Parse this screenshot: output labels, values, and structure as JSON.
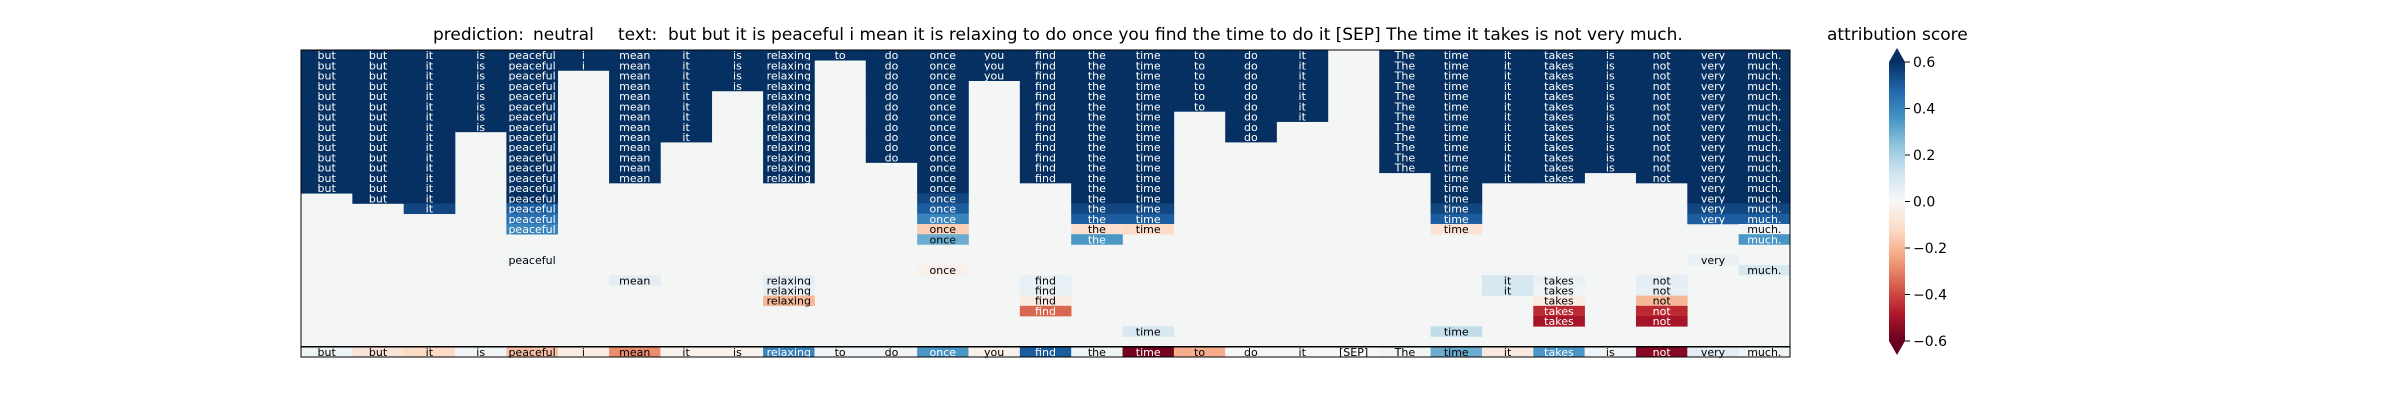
{
  "title": {
    "prediction_prefix": "prediction:",
    "prediction": "neutral",
    "text_prefix": "text:",
    "text": "but but it is peaceful i mean it is relaxing to do once you find the time to do it [SEP] The time it takes is not very much."
  },
  "colorbar": {
    "title": "attribution score",
    "ticks": [
      "0.6",
      "0.4",
      "0.2",
      "0.0",
      "−0.2",
      "−0.4",
      "−0.6"
    ],
    "low_color": "#67001f",
    "mid_color": "#f7f7f7",
    "high_color": "#053061"
  },
  "chart_data": {
    "type": "heatmap",
    "cmap": "RdBu",
    "vmin": -0.6,
    "vmax": 0.6,
    "background": "#f4f6f6",
    "tokens": [
      "but",
      "but",
      "it",
      "is",
      "peaceful",
      "i",
      "mean",
      "it",
      "is",
      "relaxing",
      "to",
      "do",
      "once",
      "you",
      "find",
      "the",
      "time",
      "to",
      "do",
      "it",
      "[SEP]",
      "The",
      "time",
      "it",
      "takes",
      "is",
      "not",
      "very",
      "much."
    ],
    "bottom_row_values": [
      0.03,
      -0.08,
      -0.12,
      0.02,
      -0.18,
      -0.05,
      -0.28,
      -0.02,
      -0.02,
      0.4,
      0.02,
      0.02,
      0.35,
      -0.03,
      0.5,
      0.03,
      -0.58,
      -0.22,
      0.0,
      0.0,
      0.0,
      0.02,
      0.3,
      -0.06,
      0.35,
      0.02,
      -0.55,
      0.06,
      0.02
    ],
    "columns": [
      [
        [
          0,
          0.6
        ],
        [
          1,
          0.6
        ],
        [
          2,
          0.6
        ],
        [
          3,
          0.6
        ],
        [
          4,
          0.6
        ],
        [
          5,
          0.6
        ],
        [
          6,
          0.6
        ],
        [
          7,
          0.6
        ],
        [
          8,
          0.6
        ],
        [
          9,
          0.6
        ],
        [
          10,
          0.6
        ],
        [
          11,
          0.6
        ],
        [
          12,
          0.6
        ],
        [
          13,
          0.6
        ]
      ],
      [
        [
          0,
          0.6
        ],
        [
          1,
          0.6
        ],
        [
          2,
          0.6
        ],
        [
          3,
          0.6
        ],
        [
          4,
          0.6
        ],
        [
          5,
          0.6
        ],
        [
          6,
          0.6
        ],
        [
          7,
          0.6
        ],
        [
          8,
          0.6
        ],
        [
          9,
          0.6
        ],
        [
          10,
          0.6
        ],
        [
          11,
          0.6
        ],
        [
          12,
          0.6
        ],
        [
          13,
          0.6
        ],
        [
          14,
          0.6
        ]
      ],
      [
        [
          0,
          0.6
        ],
        [
          1,
          0.6
        ],
        [
          2,
          0.6
        ],
        [
          3,
          0.6
        ],
        [
          4,
          0.6
        ],
        [
          5,
          0.6
        ],
        [
          6,
          0.6
        ],
        [
          7,
          0.6
        ],
        [
          8,
          0.6
        ],
        [
          9,
          0.6
        ],
        [
          10,
          0.6
        ],
        [
          11,
          0.6
        ],
        [
          12,
          0.6
        ],
        [
          13,
          0.6
        ],
        [
          14,
          0.6
        ],
        [
          15,
          0.55
        ]
      ],
      [
        [
          0,
          0.6
        ],
        [
          1,
          0.6
        ],
        [
          2,
          0.6
        ],
        [
          3,
          0.6
        ],
        [
          4,
          0.6
        ],
        [
          5,
          0.6
        ],
        [
          6,
          0.6
        ],
        [
          7,
          0.6
        ]
      ],
      [
        [
          0,
          0.6
        ],
        [
          1,
          0.6
        ],
        [
          2,
          0.6
        ],
        [
          3,
          0.6
        ],
        [
          4,
          0.6
        ],
        [
          5,
          0.6
        ],
        [
          6,
          0.6
        ],
        [
          7,
          0.6
        ],
        [
          8,
          0.6
        ],
        [
          9,
          0.6
        ],
        [
          10,
          0.6
        ],
        [
          11,
          0.6
        ],
        [
          12,
          0.6
        ],
        [
          13,
          0.6
        ],
        [
          14,
          0.6
        ],
        [
          15,
          0.5
        ],
        [
          16,
          0.45
        ],
        [
          17,
          0.4
        ],
        [
          20,
          0.02
        ]
      ],
      [
        [
          0,
          0.6
        ],
        [
          1,
          0.6
        ]
      ],
      [
        [
          0,
          0.6
        ],
        [
          1,
          0.6
        ],
        [
          2,
          0.6
        ],
        [
          3,
          0.6
        ],
        [
          4,
          0.6
        ],
        [
          5,
          0.6
        ],
        [
          6,
          0.6
        ],
        [
          7,
          0.6
        ],
        [
          8,
          0.6
        ],
        [
          9,
          0.6
        ],
        [
          10,
          0.6
        ],
        [
          11,
          0.6
        ],
        [
          12,
          0.6
        ],
        [
          22,
          0.06
        ]
      ],
      [
        [
          0,
          0.6
        ],
        [
          1,
          0.6
        ],
        [
          2,
          0.6
        ],
        [
          3,
          0.6
        ],
        [
          4,
          0.6
        ],
        [
          5,
          0.6
        ],
        [
          6,
          0.6
        ],
        [
          7,
          0.6
        ],
        [
          8,
          0.6
        ]
      ],
      [
        [
          0,
          0.6
        ],
        [
          1,
          0.6
        ],
        [
          2,
          0.6
        ],
        [
          3,
          0.6
        ]
      ],
      [
        [
          0,
          0.6
        ],
        [
          1,
          0.6
        ],
        [
          2,
          0.6
        ],
        [
          3,
          0.6
        ],
        [
          4,
          0.6
        ],
        [
          5,
          0.6
        ],
        [
          6,
          0.6
        ],
        [
          7,
          0.6
        ],
        [
          8,
          0.6
        ],
        [
          9,
          0.6
        ],
        [
          10,
          0.6
        ],
        [
          11,
          0.6
        ],
        [
          12,
          0.6
        ],
        [
          22,
          0.06
        ],
        [
          23,
          0.05
        ],
        [
          24,
          -0.2
        ]
      ],
      [
        [
          0,
          0.6
        ]
      ],
      [
        [
          0,
          0.6
        ],
        [
          1,
          0.6
        ],
        [
          2,
          0.6
        ],
        [
          3,
          0.6
        ],
        [
          4,
          0.6
        ],
        [
          5,
          0.6
        ],
        [
          6,
          0.6
        ],
        [
          7,
          0.6
        ],
        [
          8,
          0.6
        ],
        [
          9,
          0.6
        ],
        [
          10,
          0.6
        ]
      ],
      [
        [
          0,
          0.6
        ],
        [
          1,
          0.6
        ],
        [
          2,
          0.6
        ],
        [
          3,
          0.6
        ],
        [
          4,
          0.6
        ],
        [
          5,
          0.6
        ],
        [
          6,
          0.6
        ],
        [
          7,
          0.6
        ],
        [
          8,
          0.6
        ],
        [
          9,
          0.6
        ],
        [
          10,
          0.6
        ],
        [
          11,
          0.6
        ],
        [
          12,
          0.6
        ],
        [
          13,
          0.6
        ],
        [
          14,
          0.55
        ],
        [
          15,
          0.5
        ],
        [
          16,
          0.4
        ],
        [
          17,
          -0.15
        ],
        [
          18,
          0.3
        ],
        [
          21,
          -0.03
        ]
      ],
      [
        [
          0,
          0.6
        ],
        [
          1,
          0.6
        ],
        [
          2,
          0.6
        ]
      ],
      [
        [
          0,
          0.6
        ],
        [
          1,
          0.6
        ],
        [
          2,
          0.6
        ],
        [
          3,
          0.6
        ],
        [
          4,
          0.6
        ],
        [
          5,
          0.6
        ],
        [
          6,
          0.6
        ],
        [
          7,
          0.6
        ],
        [
          8,
          0.6
        ],
        [
          9,
          0.6
        ],
        [
          10,
          0.6
        ],
        [
          11,
          0.6
        ],
        [
          12,
          0.6
        ],
        [
          22,
          0.05
        ],
        [
          23,
          0.05
        ],
        [
          24,
          -0.05
        ],
        [
          25,
          -0.35
        ]
      ],
      [
        [
          0,
          0.6
        ],
        [
          1,
          0.6
        ],
        [
          2,
          0.6
        ],
        [
          3,
          0.6
        ],
        [
          4,
          0.6
        ],
        [
          5,
          0.6
        ],
        [
          6,
          0.6
        ],
        [
          7,
          0.6
        ],
        [
          8,
          0.6
        ],
        [
          9,
          0.6
        ],
        [
          10,
          0.6
        ],
        [
          11,
          0.6
        ],
        [
          12,
          0.6
        ],
        [
          13,
          0.6
        ],
        [
          14,
          0.6
        ],
        [
          15,
          0.55
        ],
        [
          16,
          0.5
        ],
        [
          17,
          -0.1
        ],
        [
          18,
          0.35
        ]
      ],
      [
        [
          0,
          0.6
        ],
        [
          1,
          0.6
        ],
        [
          2,
          0.6
        ],
        [
          3,
          0.6
        ],
        [
          4,
          0.6
        ],
        [
          5,
          0.6
        ],
        [
          6,
          0.6
        ],
        [
          7,
          0.6
        ],
        [
          8,
          0.6
        ],
        [
          9,
          0.6
        ],
        [
          10,
          0.6
        ],
        [
          11,
          0.6
        ],
        [
          12,
          0.6
        ],
        [
          13,
          0.6
        ],
        [
          14,
          0.6
        ],
        [
          15,
          0.55
        ],
        [
          16,
          0.5
        ],
        [
          17,
          -0.12
        ],
        [
          27,
          0.1
        ]
      ],
      [
        [
          0,
          0.6
        ],
        [
          1,
          0.6
        ],
        [
          2,
          0.6
        ],
        [
          3,
          0.6
        ],
        [
          4,
          0.6
        ],
        [
          5,
          0.6
        ]
      ],
      [
        [
          0,
          0.6
        ],
        [
          1,
          0.6
        ],
        [
          2,
          0.6
        ],
        [
          3,
          0.6
        ],
        [
          4,
          0.6
        ],
        [
          5,
          0.6
        ],
        [
          6,
          0.6
        ],
        [
          7,
          0.6
        ],
        [
          8,
          0.6
        ]
      ],
      [
        [
          0,
          0.6
        ],
        [
          1,
          0.6
        ],
        [
          2,
          0.6
        ],
        [
          3,
          0.6
        ],
        [
          4,
          0.6
        ],
        [
          5,
          0.6
        ],
        [
          6,
          0.6
        ]
      ],
      [],
      [
        [
          0,
          0.6
        ],
        [
          1,
          0.6
        ],
        [
          2,
          0.6
        ],
        [
          3,
          0.6
        ],
        [
          4,
          0.6
        ],
        [
          5,
          0.6
        ],
        [
          6,
          0.6
        ],
        [
          7,
          0.6
        ],
        [
          8,
          0.6
        ],
        [
          9,
          0.6
        ],
        [
          10,
          0.6
        ],
        [
          11,
          0.6
        ]
      ],
      [
        [
          0,
          0.6
        ],
        [
          1,
          0.6
        ],
        [
          2,
          0.6
        ],
        [
          3,
          0.6
        ],
        [
          4,
          0.6
        ],
        [
          5,
          0.6
        ],
        [
          6,
          0.6
        ],
        [
          7,
          0.6
        ],
        [
          8,
          0.6
        ],
        [
          9,
          0.6
        ],
        [
          10,
          0.6
        ],
        [
          11,
          0.6
        ],
        [
          12,
          0.6
        ],
        [
          13,
          0.6
        ],
        [
          14,
          0.6
        ],
        [
          15,
          0.55
        ],
        [
          16,
          0.5
        ],
        [
          17,
          -0.08
        ],
        [
          27,
          0.15
        ]
      ],
      [
        [
          0,
          0.6
        ],
        [
          1,
          0.6
        ],
        [
          2,
          0.6
        ],
        [
          3,
          0.6
        ],
        [
          4,
          0.6
        ],
        [
          5,
          0.6
        ],
        [
          6,
          0.6
        ],
        [
          7,
          0.6
        ],
        [
          8,
          0.6
        ],
        [
          9,
          0.6
        ],
        [
          10,
          0.6
        ],
        [
          11,
          0.6
        ],
        [
          12,
          0.6
        ],
        [
          22,
          0.1
        ],
        [
          23,
          0.1
        ]
      ],
      [
        [
          0,
          0.6
        ],
        [
          1,
          0.6
        ],
        [
          2,
          0.6
        ],
        [
          3,
          0.6
        ],
        [
          4,
          0.6
        ],
        [
          5,
          0.6
        ],
        [
          6,
          0.6
        ],
        [
          7,
          0.6
        ],
        [
          8,
          0.6
        ],
        [
          9,
          0.6
        ],
        [
          10,
          0.6
        ],
        [
          11,
          0.6
        ],
        [
          12,
          0.6
        ],
        [
          22,
          0.04
        ],
        [
          23,
          0.03
        ],
        [
          24,
          -0.05
        ],
        [
          25,
          -0.45
        ],
        [
          26,
          -0.5
        ]
      ],
      [
        [
          0,
          0.6
        ],
        [
          1,
          0.6
        ],
        [
          2,
          0.6
        ],
        [
          3,
          0.6
        ],
        [
          4,
          0.6
        ],
        [
          5,
          0.6
        ],
        [
          6,
          0.6
        ],
        [
          7,
          0.6
        ],
        [
          8,
          0.6
        ],
        [
          9,
          0.6
        ],
        [
          10,
          0.6
        ],
        [
          11,
          0.6
        ]
      ],
      [
        [
          0,
          0.6
        ],
        [
          1,
          0.6
        ],
        [
          2,
          0.6
        ],
        [
          3,
          0.6
        ],
        [
          4,
          0.6
        ],
        [
          5,
          0.6
        ],
        [
          6,
          0.6
        ],
        [
          7,
          0.6
        ],
        [
          8,
          0.6
        ],
        [
          9,
          0.6
        ],
        [
          10,
          0.6
        ],
        [
          11,
          0.6
        ],
        [
          12,
          0.6
        ],
        [
          22,
          0.06
        ],
        [
          23,
          0.05
        ],
        [
          24,
          -0.2
        ],
        [
          25,
          -0.45
        ],
        [
          26,
          -0.5
        ]
      ],
      [
        [
          0,
          0.6
        ],
        [
          1,
          0.6
        ],
        [
          2,
          0.6
        ],
        [
          3,
          0.6
        ],
        [
          4,
          0.6
        ],
        [
          5,
          0.6
        ],
        [
          6,
          0.6
        ],
        [
          7,
          0.6
        ],
        [
          8,
          0.6
        ],
        [
          9,
          0.6
        ],
        [
          10,
          0.6
        ],
        [
          11,
          0.6
        ],
        [
          12,
          0.6
        ],
        [
          13,
          0.6
        ],
        [
          14,
          0.6
        ],
        [
          15,
          0.55
        ],
        [
          16,
          0.5
        ],
        [
          20,
          0.04
        ]
      ],
      [
        [
          0,
          0.6
        ],
        [
          1,
          0.6
        ],
        [
          2,
          0.6
        ],
        [
          3,
          0.6
        ],
        [
          4,
          0.6
        ],
        [
          5,
          0.6
        ],
        [
          6,
          0.6
        ],
        [
          7,
          0.6
        ],
        [
          8,
          0.6
        ],
        [
          9,
          0.6
        ],
        [
          10,
          0.6
        ],
        [
          11,
          0.6
        ],
        [
          12,
          0.6
        ],
        [
          13,
          0.6
        ],
        [
          14,
          0.6
        ],
        [
          15,
          0.55
        ],
        [
          16,
          0.5
        ],
        [
          17,
          0.02
        ],
        [
          18,
          0.35
        ],
        [
          21,
          0.1
        ]
      ]
    ]
  }
}
